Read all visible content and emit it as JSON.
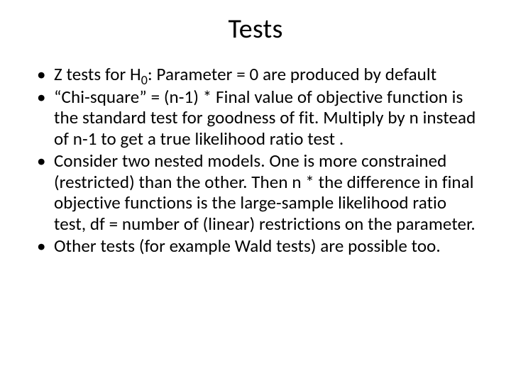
{
  "slide": {
    "title": "Tests",
    "bullets": [
      {
        "pre": "Z tests for H",
        "sub": "0",
        "post": ": Parameter = 0 are produced by default"
      },
      {
        "text": "“Chi-square” = (n-1) * Final value of objective function is the standard test for goodness of fit. Multiply by n instead of n-1 to get a true likelihood ratio test ."
      },
      {
        "text": "Consider two nested models. One is more constrained (restricted) than the other.  Then n * the difference in final objective functions is the large-sample likelihood ratio test, df = number of (linear) restrictions on the parameter."
      },
      {
        "text": "Other tests (for example Wald tests) are possible too."
      }
    ]
  },
  "style": {
    "background_color": "#ffffff",
    "text_color": "#000000",
    "title_fontsize": 38,
    "body_fontsize": 25,
    "font_family": "Calibri"
  }
}
